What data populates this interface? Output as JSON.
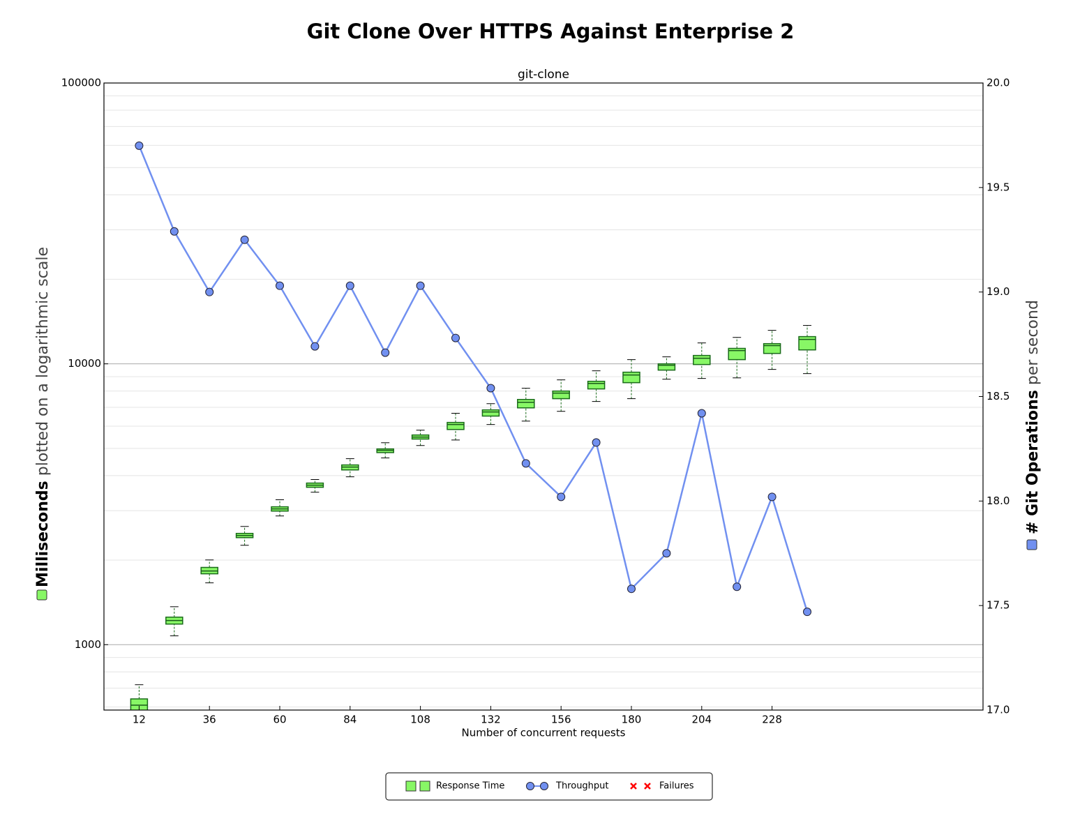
{
  "chart_data": {
    "type": "box",
    "title": "Git Clone Over HTTPS Against Enterprise 2",
    "subtitle": "git-clone",
    "x_label": "Number of concurrent requests",
    "y_label": {
      "bold": "Milliseconds",
      "rest": " plotted on a logarithmic scale"
    },
    "y2_label": {
      "bold": "# Git Operations",
      "rest": " per second"
    },
    "log_y": true,
    "grid": true,
    "legend": "lower center",
    "x": [
      12,
      24,
      36,
      48,
      60,
      72,
      84,
      96,
      108,
      120,
      132,
      144,
      156,
      168,
      180,
      192,
      204,
      216,
      228,
      240
    ],
    "xlim": [
      0,
      300
    ],
    "xticks": [
      12,
      36,
      60,
      84,
      108,
      132,
      156,
      180,
      204,
      228
    ],
    "ylim": [
      585,
      100000
    ],
    "yticks": [
      1000,
      10000,
      100000
    ],
    "y2lim": [
      17,
      20
    ],
    "y2ticks": [
      {
        "value": 17,
        "label": "17.0"
      },
      17.5,
      {
        "value": 18,
        "label": "18.0"
      },
      18.5,
      {
        "value": 19,
        "label": "19.0"
      },
      19.5,
      {
        "value": 20,
        "label": "20.0"
      }
    ],
    "series": [
      {
        "name": "Response Time",
        "type": "box",
        "color": "#88f766",
        "whisker_low": [
          520,
          1075,
          1660,
          2259,
          2873,
          3491,
          3960,
          4623,
          5118,
          5355,
          6080,
          6253,
          6775,
          7344,
          7515,
          8817,
          8869,
          8912,
          9553,
          9230
        ],
        "q1": [
          560,
          1184,
          1788,
          2405,
          2990,
          3634,
          4190,
          4830,
          5397,
          5837,
          6516,
          6970,
          7515,
          8140,
          8568,
          9498,
          9943,
          10350,
          10890,
          11210
        ],
        "median": [
          609,
          1219,
          1830,
          2447,
          3043,
          3698,
          4290,
          4920,
          5484,
          6080,
          6740,
          7295,
          7866,
          8517,
          9125,
          9886,
          10470,
          11150,
          11610,
          12220
        ],
        "q3": [
          641,
          1253,
          1884,
          2490,
          3097,
          3762,
          4365,
          4977,
          5580,
          6185,
          6855,
          7466,
          8000,
          8666,
          9337,
          10000,
          10710,
          11350,
          11800,
          12500
        ],
        "whisker_high": [
          720,
          1365,
          2003,
          2636,
          3281,
          3873,
          4595,
          5236,
          5804,
          6668,
          7213,
          8186,
          8768,
          9444,
          10350,
          10590,
          11870,
          12420,
          13160,
          13700
        ]
      },
      {
        "name": "Throughput",
        "type": "line",
        "axis": "y2",
        "color": "#7190f0",
        "values": [
          19.7,
          19.29,
          19.0,
          19.25,
          19.03,
          18.74,
          19.03,
          18.71,
          19.03,
          18.78,
          18.54,
          18.18,
          18.02,
          18.28,
          17.58,
          17.75,
          18.42,
          17.59,
          18.02,
          17.47
        ]
      },
      {
        "name": "Failures",
        "type": "scatter",
        "color": "#ff0000",
        "values": [
          null,
          null,
          null,
          null,
          null,
          null,
          null,
          null,
          null,
          null,
          null,
          null,
          null,
          null,
          null,
          null,
          null,
          null,
          null,
          null
        ]
      }
    ]
  }
}
